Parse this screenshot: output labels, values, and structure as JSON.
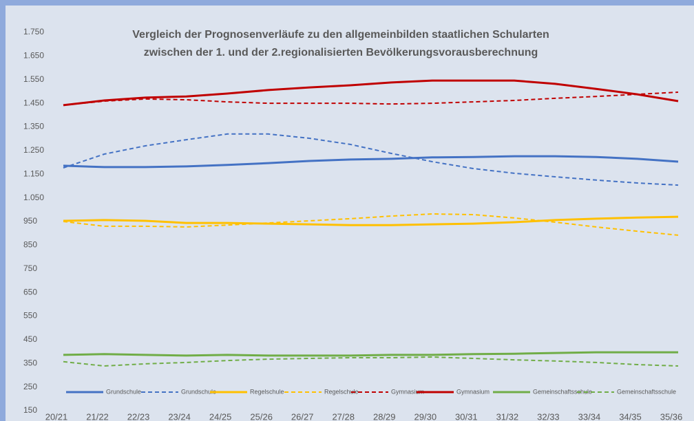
{
  "chart_data": {
    "type": "line",
    "title": [
      "Vergleich der Prognosenverläufe zu den allgemeinbilden staatlichen Schularten",
      "zwischen der 1. und der 2.regionalisierten Bevölkerungsvorausberechnung"
    ],
    "categories": [
      "20/21",
      "21/22",
      "22/23",
      "23/24",
      "24/25",
      "25/26",
      "26/27",
      "27/28",
      "28/29",
      "29/30",
      "30/31",
      "31/32",
      "32/33",
      "33/34",
      "34/35",
      "35/36"
    ],
    "ylim": [
      150,
      1750
    ],
    "yticks": [
      {
        "value": 150,
        "label": "150"
      },
      {
        "value": 250,
        "label": "250"
      },
      {
        "value": 350,
        "label": "350"
      },
      {
        "value": 450,
        "label": "450"
      },
      {
        "value": 550,
        "label": "550"
      },
      {
        "value": 650,
        "label": "650"
      },
      {
        "value": 750,
        "label": "750"
      },
      {
        "value": 850,
        "label": "850"
      },
      {
        "value": 950,
        "label": "950"
      },
      {
        "value": 1050,
        "label": "1.050"
      },
      {
        "value": 1150,
        "label": "1.150"
      },
      {
        "value": 1250,
        "label": "1.250"
      },
      {
        "value": 1350,
        "label": "1.350"
      },
      {
        "value": 1450,
        "label": "1.450"
      },
      {
        "value": 1550,
        "label": "1.550"
      },
      {
        "value": 1650,
        "label": "1.650"
      },
      {
        "value": 1750,
        "label": "1.750"
      }
    ],
    "series": [
      {
        "name": "Grundschule",
        "color": "#4472c4",
        "dash": false,
        "values": [
          1186,
          1180,
          1180,
          1183,
          1189,
          1197,
          1206,
          1212,
          1215,
          1221,
          1223,
          1226,
          1226,
          1223,
          1215,
          1203
        ]
      },
      {
        "name": "Grundschule",
        "color": "#4472c4",
        "dash": true,
        "values": [
          1177,
          1235,
          1270,
          1296,
          1320,
          1320,
          1302,
          1276,
          1238,
          1203,
          1174,
          1154,
          1139,
          1125,
          1113,
          1104
        ]
      },
      {
        "name": "Regelschule",
        "color": "#ffc000",
        "dash": false,
        "values": [
          953,
          956,
          953,
          944,
          944,
          941,
          938,
          935,
          935,
          938,
          941,
          947,
          956,
          962,
          967,
          970
        ]
      },
      {
        "name": "Regelschule",
        "color": "#ffc000",
        "dash": true,
        "values": [
          950,
          930,
          930,
          927,
          935,
          944,
          953,
          962,
          973,
          982,
          979,
          965,
          947,
          927,
          909,
          892
        ]
      },
      {
        "name": "Gymnasium",
        "color": "#c00000",
        "dash": true,
        "values": [
          1442,
          1459,
          1468,
          1465,
          1456,
          1450,
          1450,
          1450,
          1447,
          1450,
          1456,
          1462,
          1471,
          1479,
          1488,
          1497
        ]
      },
      {
        "name": "Gymnasium",
        "color": "#c00000",
        "dash": false,
        "values": [
          1442,
          1462,
          1474,
          1479,
          1491,
          1506,
          1517,
          1526,
          1538,
          1546,
          1546,
          1546,
          1532,
          1511,
          1488,
          1459
        ]
      },
      {
        "name": "Gemeinschaftsschule",
        "color": "#70ad47",
        "dash": false,
        "values": [
          386,
          389,
          386,
          383,
          386,
          383,
          383,
          383,
          386,
          386,
          389,
          391,
          394,
          397,
          397,
          397
        ]
      },
      {
        "name": "Gemeinschaftsschule",
        "color": "#70ad47",
        "dash": true,
        "values": [
          357,
          339,
          348,
          354,
          362,
          368,
          371,
          374,
          374,
          377,
          371,
          365,
          360,
          354,
          345,
          339
        ]
      }
    ]
  }
}
